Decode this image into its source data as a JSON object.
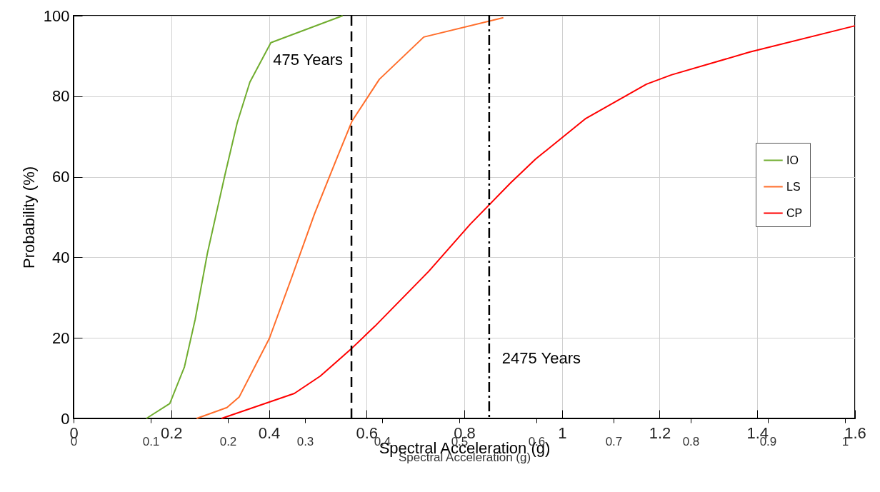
{
  "chart_data": {
    "type": "line",
    "xlabel": "Spectral Acceleration (g)",
    "ylabel": "Probability (%)",
    "x2label": "Spectral Acceleration (g)",
    "xlim": [
      0,
      1.6
    ],
    "xticks": [
      0,
      0.2,
      0.4,
      0.6,
      0.8,
      1,
      1.2,
      1.4,
      1.6
    ],
    "x2lim": [
      0,
      1.013
    ],
    "x2ticks": [
      0,
      0.1,
      0.2,
      0.3,
      0.4,
      0.5,
      0.6,
      0.7,
      0.8,
      0.9,
      1
    ],
    "ylim": [
      0,
      100
    ],
    "yticks": [
      0,
      20,
      40,
      60,
      80,
      100
    ],
    "grid": true,
    "legend": "right",
    "line_style": "solid",
    "series": [
      {
        "name": "IO",
        "color": "#70ad2f",
        "x": [
          0.149,
          0.197,
          0.227,
          0.249,
          0.274,
          0.31,
          0.335,
          0.361,
          0.404,
          0.551
        ],
        "values": [
          0,
          3.7,
          12.8,
          24.6,
          41,
          60.5,
          73.4,
          83.5,
          93.3,
          100
        ]
      },
      {
        "name": "LS",
        "color": "#ff6d2a",
        "x": [
          0.252,
          0.314,
          0.339,
          0.401,
          0.446,
          0.493,
          0.541,
          0.57,
          0.626,
          0.717,
          0.88
        ],
        "values": [
          0,
          2.7,
          5.3,
          19.9,
          34.8,
          50.7,
          65.2,
          73.8,
          84.2,
          94.7,
          99.5
        ]
      },
      {
        "name": "CP",
        "color": "#ff0000",
        "x": [
          0.303,
          0.452,
          0.505,
          0.566,
          0.617,
          0.727,
          0.812,
          0.895,
          0.946,
          1.049,
          1.173,
          1.224,
          1.385,
          1.6
        ],
        "values": [
          0,
          6.2,
          10.5,
          17,
          22.9,
          36.5,
          48.2,
          58.5,
          64.4,
          74.5,
          83,
          85.3,
          91,
          97.5
        ]
      }
    ],
    "ref_lines": [
      {
        "axis": "x",
        "value": 0.569,
        "label": "475 Years",
        "line_style": "dashed",
        "color": "#000000"
      },
      {
        "axis": "x",
        "value": 0.851,
        "label": "2475 Years",
        "line_style": "dashdot",
        "color": "#000000"
      }
    ]
  }
}
